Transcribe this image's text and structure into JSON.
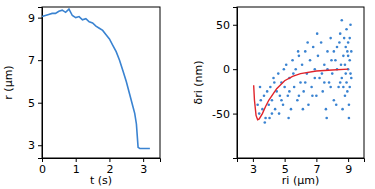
{
  "chart_data": [
    {
      "type": "line",
      "xlabel": "t (s)",
      "ylabel": "r (μm)",
      "xlim": [
        0,
        3.5
      ],
      "ylim": [
        2.4,
        9.5
      ],
      "xticks": [
        0,
        1,
        2,
        3
      ],
      "yticks": [
        3,
        5,
        7,
        9
      ],
      "series": [
        {
          "type": "line",
          "color": "#3a83d1",
          "x": [
            0,
            0.1,
            0.2,
            0.3,
            0.4,
            0.5,
            0.6,
            0.7,
            0.8,
            0.9,
            1.0,
            1.1,
            1.2,
            1.3,
            1.4,
            1.5,
            1.6,
            1.7,
            1.8,
            1.9,
            2.0,
            2.1,
            2.2,
            2.3,
            2.4,
            2.5,
            2.6,
            2.7,
            2.75,
            2.8,
            2.85,
            2.9,
            3.0,
            3.1,
            3.2
          ],
          "values": [
            9.05,
            9.1,
            9.15,
            9.2,
            9.2,
            9.3,
            9.35,
            9.25,
            9.4,
            9.1,
            9.0,
            9.05,
            8.9,
            8.95,
            8.8,
            8.75,
            8.6,
            8.5,
            8.4,
            8.2,
            8.0,
            7.7,
            7.4,
            7.0,
            6.5,
            6.0,
            5.4,
            4.8,
            4.5,
            4.0,
            2.9,
            2.85,
            2.85,
            2.85,
            2.85
          ]
        }
      ]
    },
    {
      "type": "scatter",
      "xlabel": "ri (μm)",
      "ylabel": "δri (nm)",
      "xlim": [
        2,
        10
      ],
      "ylim": [
        -100,
        70
      ],
      "xticks": [
        3,
        5,
        7,
        9
      ],
      "yticks": [
        -50,
        0,
        50
      ],
      "series": [
        {
          "type": "scatter",
          "color": "#3a83d1",
          "marker": "circle",
          "x": [
            3.3,
            3.4,
            3.5,
            3.6,
            3.7,
            3.8,
            3.9,
            4.0,
            4.1,
            4.2,
            4.3,
            4.4,
            4.5,
            4.6,
            4.7,
            4.8,
            4.9,
            5.0,
            5.1,
            5.2,
            5.3,
            5.4,
            5.5,
            5.6,
            5.7,
            5.8,
            5.9,
            6.0,
            6.1,
            6.2,
            6.3,
            6.4,
            6.5,
            6.6,
            6.7,
            6.8,
            6.9,
            7.0,
            7.1,
            7.2,
            7.3,
            7.4,
            7.5,
            7.6,
            7.7,
            7.8,
            7.9,
            8.0,
            8.1,
            8.2,
            8.3,
            8.4,
            8.5,
            8.6,
            8.7,
            8.8,
            8.9,
            9.0,
            9.1,
            9.2,
            3.45,
            3.75,
            4.05,
            4.35,
            4.65,
            4.95,
            5.25,
            5.55,
            5.85,
            6.15,
            6.45,
            6.75,
            7.05,
            7.35,
            7.65,
            7.95,
            8.25,
            8.45,
            8.55,
            8.65,
            8.75,
            8.85,
            8.95,
            9.05,
            9.15,
            8.9,
            9.0,
            9.1,
            8.8,
            9.2,
            8.6,
            9.05,
            8.95,
            9.1,
            8.7,
            9.0,
            8.85,
            9.15,
            8.5,
            8.3,
            8.1,
            7.9,
            7.7,
            7.5,
            6.9,
            6.3,
            5.9,
            5.3,
            4.8,
            4.2
          ],
          "values": [
            -40,
            -50,
            -35,
            -45,
            -30,
            -55,
            -25,
            -40,
            -20,
            -35,
            -10,
            -45,
            -25,
            -5,
            -30,
            -15,
            -40,
            -20,
            5,
            -30,
            -10,
            -45,
            10,
            -20,
            0,
            -35,
            15,
            -15,
            5,
            -25,
            20,
            -5,
            -40,
            10,
            -20,
            25,
            0,
            -30,
            15,
            -10,
            30,
            -25,
            5,
            -45,
            20,
            -15,
            35,
            -5,
            -35,
            10,
            25,
            -20,
            40,
            -10,
            15,
            -30,
            45,
            0,
            -20,
            20,
            -20,
            -60,
            -55,
            -15,
            -50,
            0,
            -55,
            -5,
            20,
            -45,
            30,
            -30,
            40,
            -5,
            -55,
            10,
            -40,
            30,
            5,
            -45,
            35,
            -5,
            20,
            -40,
            50,
            -15,
            30,
            10,
            5,
            -10,
            55,
            -55,
            -25,
            35,
            -20,
            15,
            25,
            -5,
            -15,
            0,
            20,
            -20,
            0,
            -15,
            -10,
            -15,
            -30,
            -25,
            -35,
            -50
          ]
        },
        {
          "type": "line",
          "color": "#e0242b",
          "x": [
            3.05,
            3.1,
            3.2,
            3.3,
            3.4,
            3.6,
            3.8,
            4.0,
            4.5,
            5.0,
            5.5,
            6.0,
            7.0,
            8.0,
            9.0
          ],
          "values": [
            -18,
            -35,
            -52,
            -57,
            -56,
            -50,
            -42,
            -35,
            -22,
            -13,
            -8,
            -5,
            -2,
            -1,
            0
          ]
        }
      ]
    }
  ]
}
